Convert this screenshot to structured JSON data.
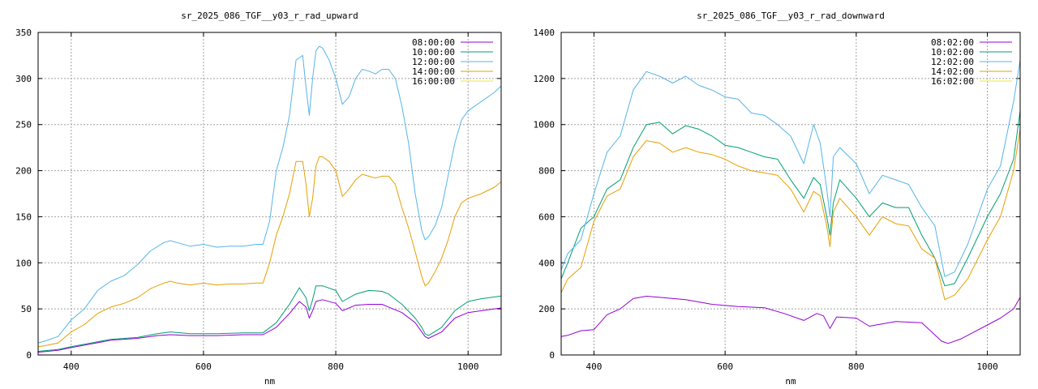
{
  "chart_data": [
    {
      "type": "line",
      "title": "sr_2025_086_TGF__y03_r_rad_upward",
      "xlabel": "nm",
      "ylabel": "",
      "xlim": [
        350,
        1050
      ],
      "ylim": [
        0,
        350
      ],
      "xticks": [
        400,
        600,
        800,
        1000
      ],
      "yticks": [
        0,
        50,
        100,
        150,
        200,
        250,
        300,
        350
      ],
      "grid": true,
      "legend_position": "top-right",
      "series": [
        {
          "name": "08:00:00",
          "color": "#9400d3",
          "x": [
            350,
            380,
            400,
            430,
            460,
            500,
            530,
            550,
            580,
            620,
            660,
            690,
            710,
            730,
            745,
            755,
            760,
            765,
            770,
            780,
            800,
            810,
            830,
            850,
            870,
            880,
            900,
            920,
            930,
            935,
            940,
            960,
            980,
            1000,
            1020,
            1040,
            1050
          ],
          "y": [
            3,
            5,
            8,
            12,
            16,
            18,
            21,
            22,
            21,
            21,
            22,
            22,
            30,
            45,
            58,
            52,
            40,
            48,
            58,
            60,
            56,
            48,
            54,
            55,
            55,
            52,
            46,
            35,
            25,
            20,
            18,
            25,
            40,
            46,
            48,
            50,
            51
          ]
        },
        {
          "name": "10:00:00",
          "color": "#009e73",
          "x": [
            350,
            380,
            400,
            430,
            460,
            500,
            530,
            550,
            580,
            620,
            660,
            690,
            710,
            730,
            745,
            755,
            760,
            765,
            770,
            780,
            800,
            810,
            830,
            850,
            870,
            880,
            900,
            920,
            930,
            935,
            940,
            960,
            980,
            1000,
            1020,
            1040,
            1050
          ],
          "y": [
            4,
            6,
            9,
            13,
            17,
            19,
            23,
            25,
            23,
            23,
            24,
            24,
            35,
            55,
            73,
            62,
            48,
            60,
            75,
            75,
            70,
            58,
            66,
            70,
            69,
            66,
            55,
            40,
            30,
            23,
            21,
            30,
            48,
            58,
            61,
            63,
            64
          ]
        },
        {
          "name": "12:00:00",
          "color": "#56b4e9",
          "x": [
            350,
            360,
            380,
            400,
            420,
            440,
            460,
            480,
            500,
            520,
            540,
            550,
            560,
            580,
            600,
            620,
            640,
            660,
            680,
            690,
            700,
            710,
            720,
            730,
            740,
            750,
            755,
            760,
            765,
            770,
            775,
            780,
            790,
            800,
            810,
            820,
            830,
            840,
            850,
            860,
            870,
            880,
            890,
            900,
            910,
            920,
            930,
            935,
            940,
            950,
            960,
            970,
            980,
            990,
            1000,
            1020,
            1040,
            1050
          ],
          "y": [
            13,
            15,
            20,
            38,
            50,
            70,
            80,
            86,
            98,
            113,
            122,
            124,
            122,
            118,
            120,
            117,
            118,
            118,
            120,
            120,
            145,
            200,
            225,
            260,
            320,
            325,
            290,
            260,
            300,
            330,
            335,
            333,
            320,
            300,
            272,
            280,
            300,
            310,
            308,
            305,
            310,
            310,
            300,
            270,
            230,
            175,
            135,
            125,
            128,
            140,
            160,
            195,
            230,
            255,
            265,
            275,
            285,
            292
          ]
        },
        {
          "name": "14:00:00",
          "color": "#e69f00",
          "x": [
            350,
            360,
            380,
            400,
            420,
            440,
            460,
            480,
            500,
            520,
            540,
            550,
            560,
            580,
            600,
            620,
            640,
            660,
            680,
            690,
            700,
            710,
            720,
            730,
            740,
            750,
            755,
            760,
            765,
            770,
            775,
            780,
            790,
            800,
            810,
            820,
            830,
            840,
            850,
            860,
            870,
            880,
            890,
            900,
            910,
            920,
            930,
            935,
            940,
            950,
            960,
            970,
            980,
            990,
            1000,
            1020,
            1040,
            1050
          ],
          "y": [
            9,
            10,
            13,
            25,
            33,
            45,
            52,
            56,
            62,
            72,
            78,
            80,
            78,
            76,
            78,
            76,
            77,
            77,
            78,
            78,
            100,
            130,
            150,
            175,
            210,
            210,
            185,
            150,
            170,
            205,
            215,
            215,
            210,
            200,
            172,
            180,
            190,
            196,
            194,
            192,
            194,
            194,
            185,
            160,
            138,
            112,
            85,
            75,
            78,
            90,
            105,
            125,
            150,
            165,
            170,
            175,
            182,
            188
          ]
        },
        {
          "name": "16:00:00",
          "color": "#f0e442",
          "x": [],
          "y": []
        }
      ]
    },
    {
      "type": "line",
      "title": "sr_2025_086_TGF__y03_r_rad_downward",
      "xlabel": "nm",
      "ylabel": "",
      "xlim": [
        350,
        1050
      ],
      "ylim": [
        0,
        1400
      ],
      "xticks": [
        400,
        600,
        800,
        1000
      ],
      "yticks": [
        0,
        200,
        400,
        600,
        800,
        1000,
        1200,
        1400
      ],
      "grid": true,
      "legend_position": "top-right",
      "series": [
        {
          "name": "08:02:00",
          "color": "#9400d3",
          "x": [
            350,
            360,
            380,
            400,
            420,
            440,
            460,
            480,
            500,
            540,
            580,
            620,
            660,
            690,
            720,
            740,
            750,
            760,
            770,
            800,
            820,
            860,
            900,
            930,
            940,
            960,
            980,
            1000,
            1020,
            1040,
            1050
          ],
          "y": [
            80,
            85,
            105,
            110,
            175,
            200,
            245,
            255,
            250,
            240,
            220,
            210,
            205,
            180,
            150,
            180,
            170,
            115,
            165,
            160,
            125,
            145,
            140,
            60,
            50,
            70,
            100,
            130,
            160,
            200,
            250
          ]
        },
        {
          "name": "10:02:00",
          "color": "#009e73",
          "x": [
            350,
            360,
            380,
            400,
            420,
            440,
            460,
            480,
            500,
            520,
            540,
            560,
            580,
            600,
            620,
            640,
            660,
            680,
            700,
            720,
            735,
            745,
            755,
            760,
            765,
            775,
            800,
            820,
            840,
            860,
            880,
            900,
            920,
            935,
            950,
            970,
            1000,
            1020,
            1040,
            1050
          ],
          "y": [
            330,
            400,
            550,
            600,
            720,
            760,
            900,
            1000,
            1010,
            960,
            995,
            980,
            950,
            910,
            900,
            880,
            860,
            850,
            760,
            680,
            770,
            740,
            600,
            520,
            660,
            760,
            680,
            600,
            660,
            640,
            640,
            520,
            420,
            300,
            310,
            420,
            600,
            700,
            850,
            1060
          ]
        },
        {
          "name": "12:02:00",
          "color": "#56b4e9",
          "x": [
            350,
            360,
            380,
            400,
            420,
            440,
            460,
            480,
            500,
            520,
            540,
            560,
            580,
            600,
            620,
            640,
            660,
            680,
            700,
            720,
            735,
            745,
            755,
            760,
            765,
            775,
            800,
            820,
            840,
            860,
            880,
            900,
            920,
            935,
            950,
            970,
            1000,
            1020,
            1040,
            1050
          ],
          "y": [
            370,
            440,
            500,
            700,
            880,
            950,
            1150,
            1230,
            1210,
            1180,
            1210,
            1170,
            1150,
            1120,
            1110,
            1050,
            1040,
            1000,
            950,
            830,
            1000,
            920,
            720,
            600,
            860,
            900,
            830,
            700,
            780,
            760,
            740,
            640,
            560,
            340,
            360,
            480,
            720,
            820,
            1100,
            1280
          ]
        },
        {
          "name": "14:02:00",
          "color": "#e69f00",
          "x": [
            350,
            360,
            380,
            400,
            420,
            440,
            460,
            480,
            500,
            520,
            540,
            560,
            580,
            600,
            620,
            640,
            660,
            680,
            700,
            720,
            735,
            745,
            755,
            760,
            765,
            775,
            800,
            820,
            840,
            860,
            880,
            900,
            920,
            935,
            950,
            970,
            1000,
            1020,
            1040,
            1050
          ],
          "y": [
            270,
            330,
            380,
            580,
            690,
            720,
            860,
            930,
            920,
            880,
            900,
            880,
            870,
            850,
            820,
            800,
            790,
            780,
            720,
            620,
            710,
            690,
            560,
            470,
            620,
            680,
            600,
            520,
            600,
            570,
            560,
            460,
            420,
            240,
            260,
            330,
            500,
            600,
            800,
            980
          ]
        },
        {
          "name": "16:02:00",
          "color": "#f0e442",
          "x": [],
          "y": []
        }
      ]
    }
  ]
}
